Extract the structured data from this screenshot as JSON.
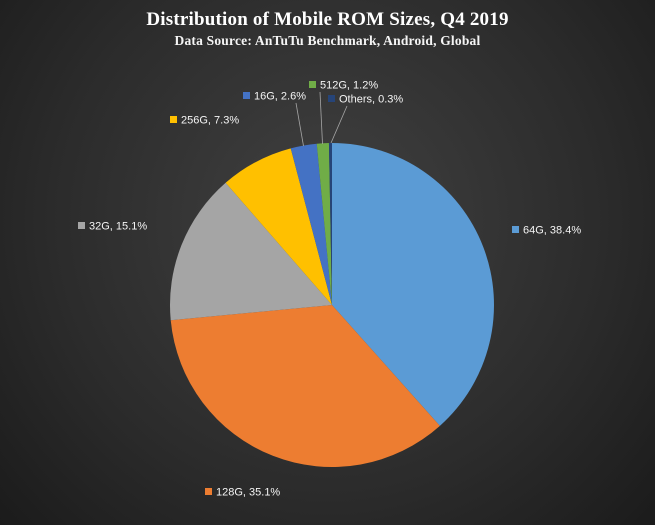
{
  "header": {
    "title": "Distribution of Mobile ROM Sizes, Q4 2019",
    "subtitle": "Data Source: AnTuTu Benchmark, Android, Global"
  },
  "chart_data": {
    "type": "pie",
    "title": "Distribution of Mobile ROM Sizes, Q4 2019",
    "subtitle": "Data Source: AnTuTu Benchmark, Android, Global",
    "unit": "%",
    "start_angle_deg": -90,
    "direction": "clockwise",
    "legend_position": "labels-outside",
    "slices": [
      {
        "name": "64G",
        "value": 38.4,
        "color": "#5B9BD5"
      },
      {
        "name": "128G",
        "value": 35.1,
        "color": "#ED7D31"
      },
      {
        "name": "32G",
        "value": 15.1,
        "color": "#A5A5A5"
      },
      {
        "name": "256G",
        "value": 7.3,
        "color": "#FFC000"
      },
      {
        "name": "16G",
        "value": 2.6,
        "color": "#4472C4"
      },
      {
        "name": "512G",
        "value": 1.2,
        "color": "#70AD47"
      },
      {
        "name": "Others",
        "value": 0.3,
        "color": "#264478"
      }
    ],
    "label_format": "{name}, {value}%"
  }
}
